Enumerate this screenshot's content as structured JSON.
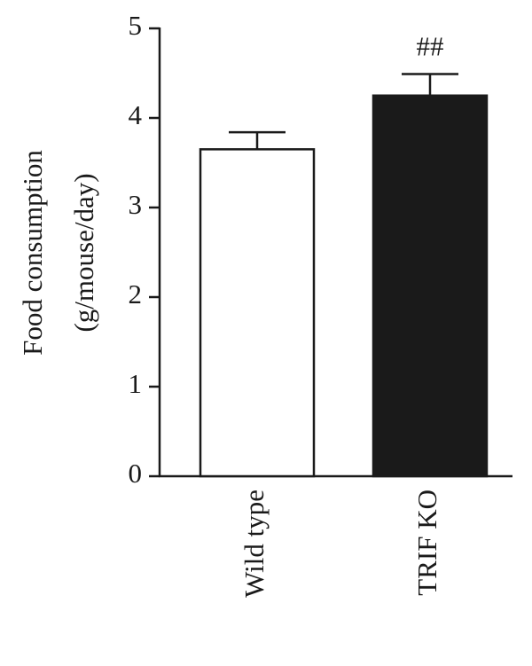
{
  "chart_data": {
    "type": "bar",
    "y_label": [
      "Food consumption",
      "(g/mouse/day)"
    ],
    "categories": [
      "Wild type",
      "TRIF KO"
    ],
    "values": [
      3.65,
      4.25
    ],
    "errors": [
      0.19,
      0.24
    ],
    "colors": [
      "#ffffff",
      "#1a1a1a"
    ],
    "annotations": [
      {
        "category": "TRIF KO",
        "text": "##"
      }
    ],
    "ylim": [
      0,
      5
    ],
    "yticks": [
      0,
      1,
      2,
      3,
      4,
      5
    ],
    "grid": false
  }
}
